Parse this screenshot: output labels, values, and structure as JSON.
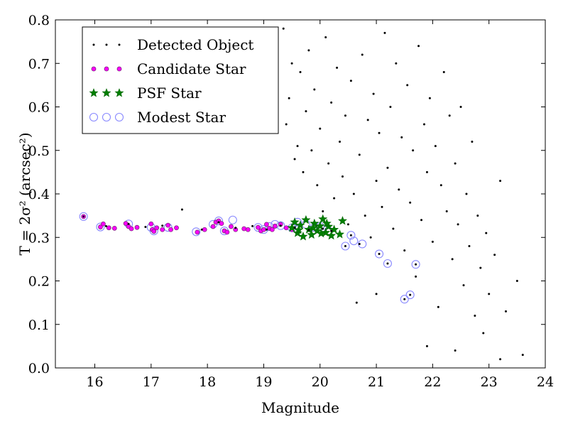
{
  "chart_data": {
    "type": "scatter",
    "xlabel": "Magnitude",
    "ylabel": "T = 2σ² (arcsec²)",
    "xlim": [
      15.3,
      24
    ],
    "ylim": [
      0,
      0.8
    ],
    "xticks": [
      "16",
      "17",
      "18",
      "19",
      "20",
      "21",
      "22",
      "23",
      "24"
    ],
    "yticks": [
      "0.0",
      "0.1",
      "0.2",
      "0.3",
      "0.4",
      "0.5",
      "0.6",
      "0.7",
      "0.8"
    ],
    "grid": false,
    "legend_position": "top-left",
    "series": [
      {
        "name": "Detected Object",
        "color": "#000000",
        "marker": "dot",
        "points": [
          [
            15.8,
            0.348
          ],
          [
            16.2,
            0.326
          ],
          [
            16.6,
            0.331
          ],
          [
            16.9,
            0.324
          ],
          [
            17.2,
            0.327
          ],
          [
            17.55,
            0.364
          ],
          [
            17.9,
            0.318
          ],
          [
            18.2,
            0.335
          ],
          [
            18.5,
            0.322
          ],
          [
            18.8,
            0.326
          ],
          [
            19.05,
            0.318
          ],
          [
            19.3,
            0.327
          ],
          [
            19.55,
            0.322
          ],
          [
            19.8,
            0.317
          ],
          [
            20.05,
            0.32
          ],
          [
            20.2,
            0.315
          ],
          [
            20.45,
            0.28
          ],
          [
            20.55,
            0.305
          ],
          [
            20.7,
            0.285
          ],
          [
            21.05,
            0.262
          ],
          [
            21.2,
            0.24
          ],
          [
            21.5,
            0.158
          ],
          [
            21.6,
            0.168
          ],
          [
            21.7,
            0.238
          ],
          [
            19.35,
            0.78
          ],
          [
            19.4,
            0.56
          ],
          [
            19.45,
            0.62
          ],
          [
            19.5,
            0.7
          ],
          [
            19.55,
            0.48
          ],
          [
            19.6,
            0.51
          ],
          [
            19.65,
            0.68
          ],
          [
            19.7,
            0.45
          ],
          [
            19.75,
            0.59
          ],
          [
            19.8,
            0.73
          ],
          [
            19.85,
            0.5
          ],
          [
            19.9,
            0.64
          ],
          [
            19.95,
            0.42
          ],
          [
            20.0,
            0.55
          ],
          [
            20.05,
            0.36
          ],
          [
            20.1,
            0.76
          ],
          [
            20.15,
            0.47
          ],
          [
            20.2,
            0.61
          ],
          [
            20.25,
            0.39
          ],
          [
            20.3,
            0.69
          ],
          [
            20.35,
            0.52
          ],
          [
            20.4,
            0.44
          ],
          [
            20.45,
            0.58
          ],
          [
            20.5,
            0.33
          ],
          [
            20.55,
            0.66
          ],
          [
            20.6,
            0.4
          ],
          [
            20.65,
            0.15
          ],
          [
            20.7,
            0.49
          ],
          [
            20.75,
            0.72
          ],
          [
            20.8,
            0.35
          ],
          [
            20.85,
            0.57
          ],
          [
            20.9,
            0.3
          ],
          [
            20.95,
            0.63
          ],
          [
            21.0,
            0.43
          ],
          [
            21.05,
            0.54
          ],
          [
            21.1,
            0.37
          ],
          [
            21.15,
            0.77
          ],
          [
            21.2,
            0.46
          ],
          [
            21.25,
            0.6
          ],
          [
            21.3,
            0.32
          ],
          [
            21.35,
            0.7
          ],
          [
            21.4,
            0.41
          ],
          [
            21.45,
            0.53
          ],
          [
            21.5,
            0.27
          ],
          [
            21.55,
            0.65
          ],
          [
            21.6,
            0.38
          ],
          [
            21.65,
            0.5
          ],
          [
            21.7,
            0.21
          ],
          [
            21.75,
            0.74
          ],
          [
            21.8,
            0.34
          ],
          [
            21.85,
            0.56
          ],
          [
            21.9,
            0.45
          ],
          [
            21.95,
            0.62
          ],
          [
            22.0,
            0.29
          ],
          [
            22.05,
            0.51
          ],
          [
            22.1,
            0.14
          ],
          [
            22.15,
            0.42
          ],
          [
            22.2,
            0.68
          ],
          [
            22.25,
            0.36
          ],
          [
            22.3,
            0.58
          ],
          [
            22.35,
            0.25
          ],
          [
            22.4,
            0.47
          ],
          [
            22.45,
            0.33
          ],
          [
            22.5,
            0.6
          ],
          [
            22.55,
            0.19
          ],
          [
            22.6,
            0.4
          ],
          [
            22.65,
            0.28
          ],
          [
            22.7,
            0.52
          ],
          [
            22.75,
            0.12
          ],
          [
            22.8,
            0.35
          ],
          [
            22.85,
            0.23
          ],
          [
            22.9,
            0.08
          ],
          [
            22.95,
            0.31
          ],
          [
            23.0,
            0.17
          ],
          [
            23.1,
            0.26
          ],
          [
            23.2,
            0.43
          ],
          [
            23.3,
            0.13
          ],
          [
            23.5,
            0.2
          ],
          [
            23.6,
            0.03
          ],
          [
            21.0,
            0.17
          ],
          [
            21.9,
            0.05
          ],
          [
            22.4,
            0.04
          ],
          [
            23.2,
            0.02
          ]
        ]
      },
      {
        "name": "Candidate Star",
        "color": "#ff00ff",
        "marker": "small-circle",
        "points": [
          [
            15.8,
            0.348
          ],
          [
            16.1,
            0.324
          ],
          [
            16.15,
            0.331
          ],
          [
            16.25,
            0.322
          ],
          [
            16.35,
            0.321
          ],
          [
            16.55,
            0.332
          ],
          [
            16.6,
            0.325
          ],
          [
            16.65,
            0.32
          ],
          [
            16.75,
            0.323
          ],
          [
            17.0,
            0.331
          ],
          [
            17.02,
            0.318
          ],
          [
            17.05,
            0.314
          ],
          [
            17.1,
            0.322
          ],
          [
            17.2,
            0.318
          ],
          [
            17.3,
            0.328
          ],
          [
            17.35,
            0.318
          ],
          [
            17.45,
            0.322
          ],
          [
            17.82,
            0.312
          ],
          [
            17.95,
            0.318
          ],
          [
            18.1,
            0.325
          ],
          [
            18.15,
            0.335
          ],
          [
            18.2,
            0.338
          ],
          [
            18.25,
            0.332
          ],
          [
            18.3,
            0.315
          ],
          [
            18.35,
            0.312
          ],
          [
            18.42,
            0.325
          ],
          [
            18.5,
            0.318
          ],
          [
            18.65,
            0.32
          ],
          [
            18.72,
            0.318
          ],
          [
            18.9,
            0.323
          ],
          [
            18.95,
            0.315
          ],
          [
            19.0,
            0.318
          ],
          [
            19.05,
            0.33
          ],
          [
            19.1,
            0.321
          ],
          [
            19.15,
            0.318
          ],
          [
            19.2,
            0.326
          ],
          [
            19.3,
            0.33
          ],
          [
            19.4,
            0.322
          ],
          [
            19.5,
            0.318
          ]
        ]
      },
      {
        "name": "PSF Star",
        "color": "#008000",
        "marker": "star",
        "points": [
          [
            19.5,
            0.322
          ],
          [
            19.55,
            0.335
          ],
          [
            19.6,
            0.31
          ],
          [
            19.65,
            0.328
          ],
          [
            19.7,
            0.302
          ],
          [
            19.75,
            0.34
          ],
          [
            19.8,
            0.318
          ],
          [
            19.85,
            0.306
          ],
          [
            19.9,
            0.332
          ],
          [
            19.95,
            0.315
          ],
          [
            20.0,
            0.326
          ],
          [
            20.05,
            0.342
          ],
          [
            20.1,
            0.311
          ],
          [
            20.15,
            0.325
          ],
          [
            20.2,
            0.304
          ],
          [
            20.25,
            0.318
          ],
          [
            20.35,
            0.307
          ],
          [
            20.4,
            0.338
          ],
          [
            19.62,
            0.317
          ],
          [
            19.88,
            0.322
          ],
          [
            20.02,
            0.309
          ],
          [
            20.12,
            0.332
          ]
        ]
      },
      {
        "name": "Modest Star",
        "color": "#8888ff",
        "marker": "open-circle",
        "points": [
          [
            15.8,
            0.348
          ],
          [
            16.1,
            0.324
          ],
          [
            16.6,
            0.331
          ],
          [
            17.0,
            0.323
          ],
          [
            17.05,
            0.315
          ],
          [
            17.3,
            0.323
          ],
          [
            17.8,
            0.313
          ],
          [
            18.1,
            0.33
          ],
          [
            18.2,
            0.338
          ],
          [
            18.3,
            0.315
          ],
          [
            18.45,
            0.34
          ],
          [
            18.9,
            0.323
          ],
          [
            19.0,
            0.318
          ],
          [
            19.1,
            0.325
          ],
          [
            19.2,
            0.33
          ],
          [
            19.3,
            0.327
          ],
          [
            19.5,
            0.322
          ],
          [
            19.6,
            0.335
          ],
          [
            19.75,
            0.33
          ],
          [
            19.9,
            0.323
          ],
          [
            20.0,
            0.325
          ],
          [
            20.15,
            0.315
          ],
          [
            20.45,
            0.28
          ],
          [
            20.55,
            0.305
          ],
          [
            20.6,
            0.292
          ],
          [
            20.75,
            0.285
          ],
          [
            21.05,
            0.262
          ],
          [
            21.2,
            0.24
          ],
          [
            21.5,
            0.158
          ],
          [
            21.6,
            0.168
          ],
          [
            21.7,
            0.238
          ]
        ]
      }
    ]
  }
}
